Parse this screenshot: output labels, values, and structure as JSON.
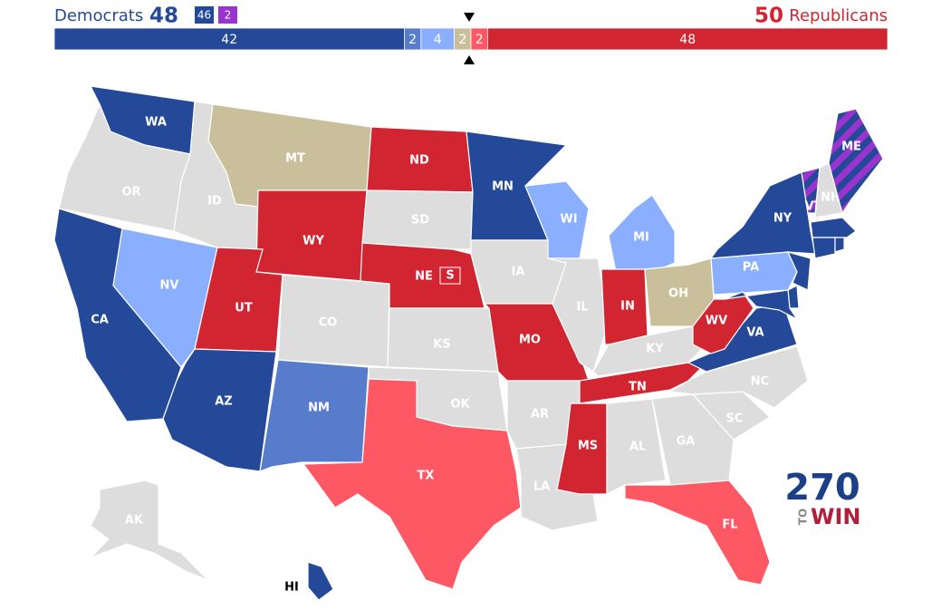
{
  "header": {
    "dem_label": "Democrats",
    "dem_total": 48,
    "dem_color": "#244999",
    "badges": [
      {
        "value": 46,
        "color": "#244999"
      },
      {
        "value": 2,
        "color": "#9b33cf"
      }
    ],
    "rep_total": 50,
    "rep_label": "Republicans",
    "rep_color": "#d22532"
  },
  "balance_bar": {
    "segments": [
      {
        "value": 42,
        "color": "#244999"
      },
      {
        "value": 2,
        "color": "#577ccc"
      },
      {
        "value": 4,
        "color": "#8aafff"
      },
      {
        "value": 2,
        "color": "#c9c09b"
      },
      {
        "value": 2,
        "color": "#ff5865"
      },
      {
        "value": 48,
        "color": "#d22532"
      }
    ]
  },
  "states": [
    {
      "label": "WA",
      "color": "#244999"
    },
    {
      "label": "OR",
      "color": "#dddddd"
    },
    {
      "label": "CA",
      "color": "#244999"
    },
    {
      "label": "NV",
      "color": "#8aafff"
    },
    {
      "label": "ID",
      "color": "#dddddd"
    },
    {
      "label": "MT",
      "color": "#c9c09b"
    },
    {
      "label": "WY",
      "color": "#d22532"
    },
    {
      "label": "UT",
      "color": "#d22532"
    },
    {
      "label": "AZ",
      "color": "#244999"
    },
    {
      "label": "CO",
      "color": "#dddddd"
    },
    {
      "label": "NM",
      "color": "#577ccc"
    },
    {
      "label": "ND",
      "color": "#d22532"
    },
    {
      "label": "SD",
      "color": "#dddddd"
    },
    {
      "label": "NE",
      "color": "#d22532"
    },
    {
      "label": "KS",
      "color": "#dddddd"
    },
    {
      "label": "OK",
      "color": "#dddddd"
    },
    {
      "label": "TX",
      "color": "#ff5865"
    },
    {
      "label": "MN",
      "color": "#244999"
    },
    {
      "label": "IA",
      "color": "#dddddd"
    },
    {
      "label": "MO",
      "color": "#d22532"
    },
    {
      "label": "AR",
      "color": "#dddddd"
    },
    {
      "label": "LA",
      "color": "#dddddd"
    },
    {
      "label": "WI",
      "color": "#8aafff"
    },
    {
      "label": "IL",
      "color": "#dddddd"
    },
    {
      "label": "MI",
      "color": "#8aafff"
    },
    {
      "label": "IN",
      "color": "#d22532"
    },
    {
      "label": "OH",
      "color": "#c9c09b"
    },
    {
      "label": "KY",
      "color": "#dddddd"
    },
    {
      "label": "TN",
      "color": "#d22532"
    },
    {
      "label": "MS",
      "color": "#d22532"
    },
    {
      "label": "AL",
      "color": "#dddddd"
    },
    {
      "label": "GA",
      "color": "#dddddd"
    },
    {
      "label": "FL",
      "color": "#ff5865"
    },
    {
      "label": "SC",
      "color": "#dddddd"
    },
    {
      "label": "NC",
      "color": "#dddddd"
    },
    {
      "label": "VA",
      "color": "#244999"
    },
    {
      "label": "WV",
      "color": "#d22532"
    },
    {
      "label": "PA",
      "color": "#8aafff"
    },
    {
      "label": "NY",
      "color": "#244999"
    },
    {
      "label": "VT",
      "color": "#9b33cf",
      "stripes": "#244999"
    },
    {
      "label": "NH",
      "color": "#dddddd"
    },
    {
      "label": "ME",
      "color": "#9b33cf",
      "stripes": "#244999"
    },
    {
      "label": null,
      "color": "#244999"
    },
    {
      "label": null,
      "color": "#244999"
    },
    {
      "label": null,
      "color": "#244999"
    },
    {
      "label": null,
      "color": "#244999"
    },
    {
      "label": null,
      "color": "#244999"
    },
    {
      "label": null,
      "color": "#244999"
    },
    {
      "label": "AK",
      "color": "#dddddd"
    },
    {
      "label": "HI",
      "color": "#244999"
    }
  ],
  "special_marker": "S",
  "logo": {
    "number": "270",
    "to": "TO",
    "win": "WIN"
  }
}
